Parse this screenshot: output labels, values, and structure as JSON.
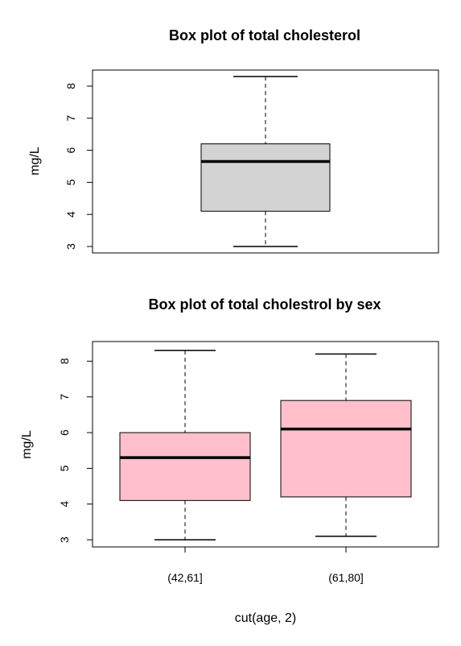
{
  "chart_data": [
    {
      "type": "box",
      "title": "Box plot of total cholesterol",
      "xlabel": "",
      "ylabel": "mg/L",
      "ylim": [
        2.8,
        8.5
      ],
      "yticks": [
        3,
        4,
        5,
        6,
        7,
        8
      ],
      "box_color": "#d3d3d3",
      "boxes": [
        {
          "label": "",
          "min": 3.0,
          "q1": 4.1,
          "median": 5.65,
          "q3": 6.2,
          "max": 8.3
        }
      ]
    },
    {
      "type": "box",
      "title": "Box plot of total cholestrol by sex",
      "xlabel": "cut(age, 2)",
      "ylabel": "mg/L",
      "ylim": [
        2.8,
        8.55
      ],
      "yticks": [
        3,
        4,
        5,
        6,
        7,
        8
      ],
      "box_color": "#ffc0cb",
      "boxes": [
        {
          "label": "(42,61]",
          "min": 3.0,
          "q1": 4.1,
          "median": 5.3,
          "q3": 6.0,
          "max": 8.3
        },
        {
          "label": "(61,80]",
          "min": 3.1,
          "q1": 4.2,
          "median": 6.1,
          "q3": 6.9,
          "max": 8.2
        }
      ]
    }
  ]
}
